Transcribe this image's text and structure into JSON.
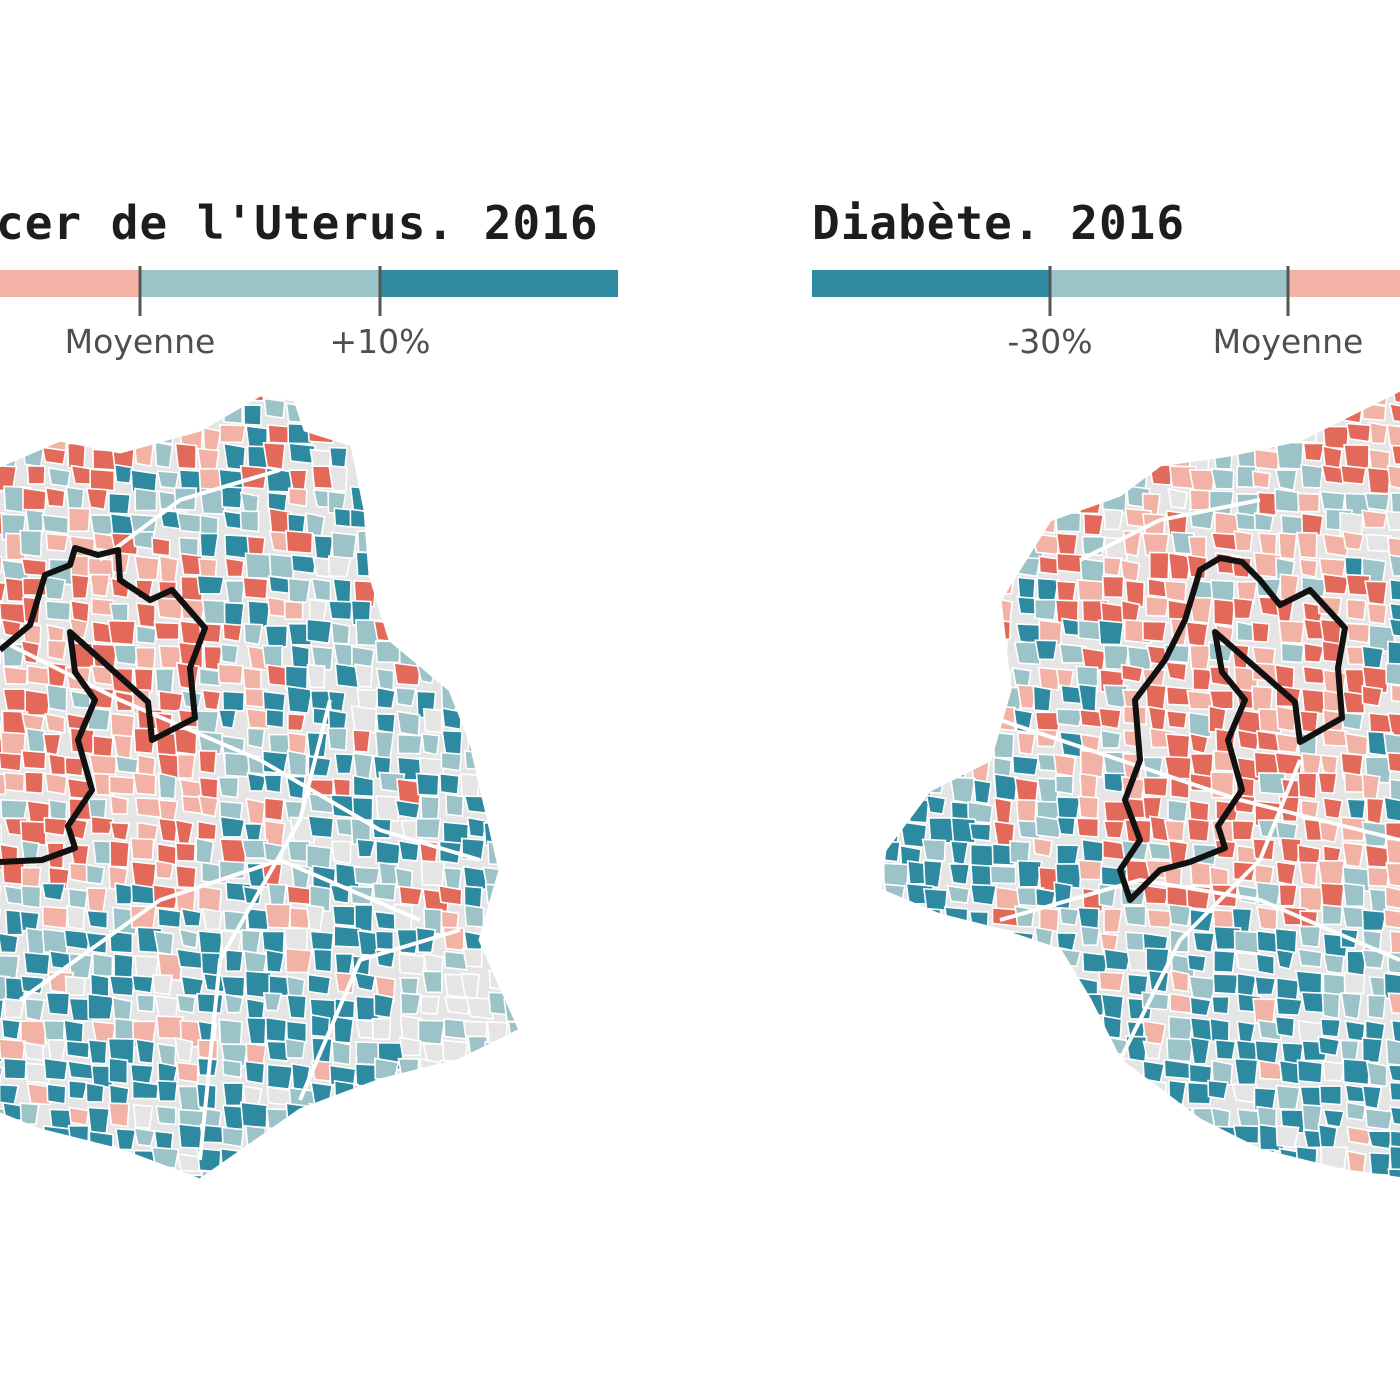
{
  "colors": {
    "high": "#e36a5b",
    "above": "#f2b3a6",
    "below": "#9cc3c8",
    "low": "#2e8aa1",
    "none": "#e5e5e5",
    "border": "#111111"
  },
  "maps": [
    {
      "id": "uterus",
      "title": "cer de l'Uterus. 2016",
      "legend_classes": [
        "above",
        "below",
        "low"
      ],
      "legend_labels": [
        "Moyenne",
        "+10%"
      ]
    },
    {
      "id": "diabete",
      "title": "Diabète. 2016",
      "legend_classes": [
        "low",
        "below",
        "above"
      ],
      "legend_labels": [
        "-30%",
        "Moyenne"
      ]
    }
  ]
}
